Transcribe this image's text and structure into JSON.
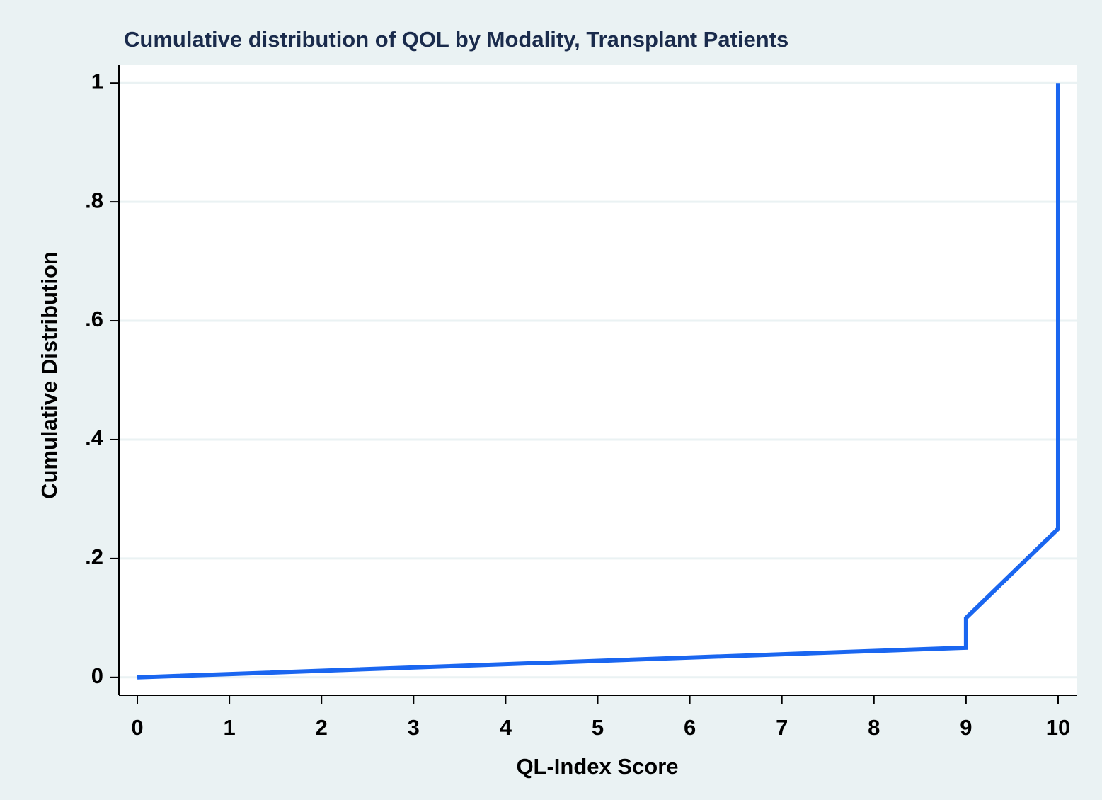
{
  "chart_data": {
    "type": "line",
    "title": "Cumulative distribution of QOL by Modality, Transplant Patients",
    "x_label": "QL-Index Score",
    "y_label": "Cumulative Distribution",
    "x": [
      0,
      9,
      9,
      10,
      10
    ],
    "series": [
      {
        "color": "#1a66f0",
        "values": [
          0,
          0.05,
          0.1,
          0.25,
          1
        ]
      }
    ],
    "xlim": [
      -0.2,
      10.2
    ],
    "ylim": [
      -0.03,
      1.03
    ],
    "xticks": [
      0,
      1,
      2,
      3,
      4,
      5,
      6,
      7,
      8,
      9,
      10
    ],
    "yticks": [
      0,
      {
        "value": 0.2,
        "label": ".2"
      },
      {
        "value": 0.4,
        "label": ".4"
      },
      {
        "value": 0.6,
        "label": ".6"
      },
      {
        "value": 0.8,
        "label": ".8"
      },
      1
    ],
    "grid": true
  }
}
